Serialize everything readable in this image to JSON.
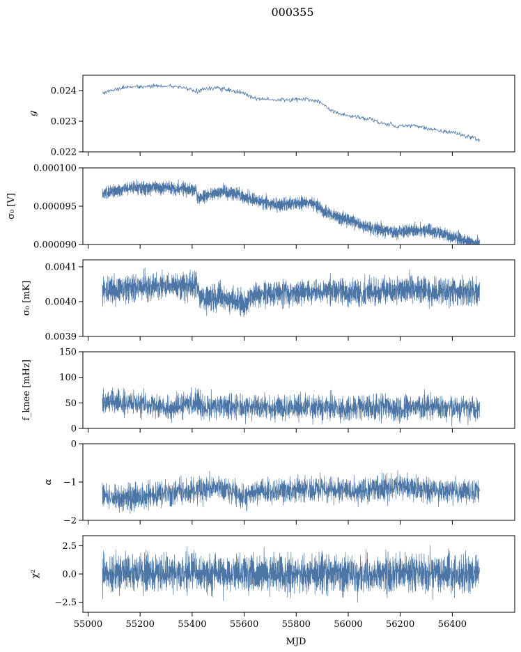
{
  "figure": {
    "title": "000355",
    "xlabel": "MJD"
  },
  "chart_data": {
    "type": "line",
    "title": "000355",
    "xlabel": "MJD",
    "shared_x": true,
    "xlim": [
      54980,
      56640
    ],
    "x_ticks": [
      55000,
      55200,
      55400,
      55600,
      55800,
      56000,
      56200,
      56400
    ],
    "x_tick_labels": [
      "55000",
      "55200",
      "55400",
      "55600",
      "55800",
      "56000",
      "56200",
      "56400"
    ],
    "x_data_range": [
      55055,
      56505
    ],
    "color": "#4c76a5",
    "panels": [
      {
        "id": "g",
        "ylabel": "g",
        "ylim": [
          0.022,
          0.0245
        ],
        "y_ticks": [
          0.022,
          0.023,
          0.024
        ],
        "y_tick_labels": [
          "0.022",
          "0.023",
          "0.024"
        ],
        "style": "line",
        "trend": {
          "x": [
            55055,
            55080,
            55150,
            55200,
            55300,
            55380,
            55415,
            55440,
            55500,
            55560,
            55600,
            55650,
            55720,
            55780,
            55830,
            55880,
            55930,
            55960,
            56000,
            56080,
            56150,
            56165,
            56180,
            56200,
            56250,
            56300,
            56350,
            56400,
            56450,
            56480,
            56505
          ],
          "y": [
            0.02393,
            0.02398,
            0.02412,
            0.02413,
            0.02415,
            0.0241,
            0.02396,
            0.02406,
            0.02408,
            0.02398,
            0.02391,
            0.02372,
            0.0237,
            0.02368,
            0.02374,
            0.02368,
            0.02338,
            0.02327,
            0.02317,
            0.02308,
            0.02286,
            0.02294,
            0.02278,
            0.02285,
            0.02286,
            0.02278,
            0.02267,
            0.02265,
            0.02252,
            0.02247,
            0.02238
          ]
        },
        "noise": 3.5e-05,
        "spread": 0
      },
      {
        "id": "sigma0-v",
        "ylabel": "σ₀ [V]",
        "ylim": [
          9e-05,
          0.0001
        ],
        "y_ticks": [
          9e-05,
          9.5e-05,
          0.0001
        ],
        "y_tick_labels": [
          "0.000090",
          "0.000095",
          "0.000100"
        ],
        "style": "band",
        "trend": {
          "x": [
            55055,
            55100,
            55150,
            55200,
            55300,
            55380,
            55415,
            55420,
            55460,
            55520,
            55580,
            55650,
            55720,
            55780,
            55830,
            55880,
            55900,
            55950,
            56000,
            56050,
            56100,
            56150,
            56200,
            56250,
            56300,
            56350,
            56400,
            56450,
            56505
          ],
          "y": [
            9.66e-05,
            9.7e-05,
            9.73e-05,
            9.74e-05,
            9.74e-05,
            9.73e-05,
            9.72e-05,
            9.6e-05,
            9.65e-05,
            9.68e-05,
            9.65e-05,
            9.56e-05,
            9.52e-05,
            9.53e-05,
            9.55e-05,
            9.53e-05,
            9.43e-05,
            9.37e-05,
            9.32e-05,
            9.26e-05,
            9.2e-05,
            9.18e-05,
            9.16e-05,
            9.19e-05,
            9.19e-05,
            9.15e-05,
            9.1e-05,
            9.05e-05,
            9.01e-05
          ]
        },
        "noise": 2.5e-07,
        "spread": 7e-07
      },
      {
        "id": "sigma0-mk",
        "ylabel": "σ₀ [mK]",
        "ylim": [
          0.0039,
          0.00412
        ],
        "y_ticks": [
          0.0039,
          0.004,
          0.0041
        ],
        "y_tick_labels": [
          "0.0039",
          "0.0040",
          "0.0041"
        ],
        "style": "band",
        "trend": {
          "x": [
            55055,
            55100,
            55200,
            55300,
            55380,
            55415,
            55430,
            55500,
            55560,
            55600,
            55640,
            55700,
            55800,
            55850,
            55900,
            55950,
            56000,
            56100,
            56200,
            56300,
            56400,
            56505
          ],
          "y": [
            0.00403,
            0.004035,
            0.00404,
            0.004045,
            0.004048,
            0.00405,
            0.00401,
            0.004015,
            0.004005,
            0.00399,
            0.00402,
            0.004025,
            0.004025,
            0.00403,
            0.00403,
            0.004035,
            0.004025,
            0.00403,
            0.004033,
            0.00403,
            0.004028,
            0.00403
          ]
        },
        "noise": 1.2e-05,
        "spread": 2.8e-05
      },
      {
        "id": "fknee",
        "ylabel": "f_knee [mHz]",
        "ylim": [
          0,
          150
        ],
        "y_ticks": [
          0,
          50,
          100,
          150
        ],
        "y_tick_labels": [
          "0",
          "50",
          "100",
          "150"
        ],
        "style": "band",
        "trend": {
          "x": [
            55055,
            55100,
            55200,
            55300,
            55350,
            55415,
            55450,
            55550,
            55650,
            55700,
            55800,
            55900,
            55950,
            56000,
            56100,
            56200,
            56300,
            56400,
            56505
          ],
          "y": [
            50,
            52,
            48,
            40,
            45,
            50,
            42,
            44,
            43,
            41,
            42,
            40,
            40,
            38,
            42,
            40,
            43,
            40,
            38
          ]
        },
        "noise": 9,
        "spread": 16
      },
      {
        "id": "alpha",
        "ylabel": "α",
        "ylim": [
          -2,
          0
        ],
        "y_ticks": [
          -2,
          -1,
          0
        ],
        "y_tick_labels": [
          "−2",
          "−1",
          "0"
        ],
        "style": "band",
        "trend": {
          "x": [
            55055,
            55100,
            55200,
            55300,
            55350,
            55400,
            55500,
            55550,
            55600,
            55650,
            55700,
            55800,
            55900,
            56000,
            56100,
            56200,
            56300,
            56400,
            56505
          ],
          "y": [
            -1.35,
            -1.4,
            -1.38,
            -1.3,
            -1.2,
            -1.22,
            -1.15,
            -1.25,
            -1.4,
            -1.25,
            -1.22,
            -1.2,
            -1.18,
            -1.22,
            -1.2,
            -1.1,
            -1.2,
            -1.25,
            -1.25
          ]
        },
        "noise": 0.12,
        "spread": 0.22
      },
      {
        "id": "chi2",
        "ylabel": "χ²",
        "ylim": [
          -3.4,
          3.4
        ],
        "y_ticks": [
          -2.5,
          0.0,
          2.5
        ],
        "y_tick_labels": [
          "−2.5",
          "0.0",
          "2.5"
        ],
        "style": "band",
        "trend": {
          "x": [
            55055,
            56505
          ],
          "y": [
            0.05,
            0.05
          ]
        },
        "noise": 0.55,
        "spread": 1.2
      }
    ]
  }
}
